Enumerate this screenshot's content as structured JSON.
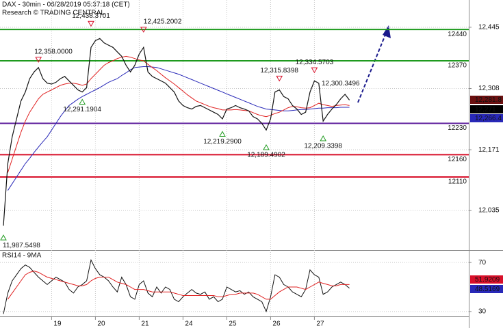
{
  "chart_data": {
    "type": "line",
    "title": "DAX - 30min - 06/28/2019 05:37:18 (CET)",
    "subtitle": "Research © TRADING CENTRAL",
    "categories": [
      null,
      null,
      null,
      null,
      null,
      null,
      null,
      null,
      null,
      null,
      null,
      "19",
      null,
      null,
      null,
      null,
      null,
      null,
      null,
      null,
      null,
      "20",
      null,
      null,
      null,
      null,
      null,
      null,
      null,
      null,
      null,
      "21",
      null,
      null,
      null,
      null,
      null,
      null,
      null,
      null,
      null,
      "24",
      null,
      null,
      null,
      null,
      null,
      null,
      null,
      null,
      null,
      "25",
      null,
      null,
      null,
      null,
      null,
      null,
      null,
      null,
      null,
      "26",
      null,
      null,
      null,
      null,
      null,
      null,
      null,
      null,
      null,
      "27",
      null,
      null,
      null,
      null,
      null,
      null,
      null,
      null
    ],
    "series": [
      {
        "name": "DAX",
        "color": "#111111",
        "values": [
          12001,
          12140,
          12200,
          12240,
          12280,
          12300,
          12330,
          12345,
          12355,
          12330,
          12320,
          12318,
          12322,
          12330,
          12335,
          12325,
          12315,
          12305,
          12300,
          12310,
          12400,
          12415,
          12420,
          12410,
          12405,
          12400,
          12390,
          12380,
          12360,
          12345,
          12360,
          12385,
          12400,
          12345,
          12335,
          12330,
          12325,
          12320,
          12310,
          12300,
          12280,
          12270,
          12265,
          12262,
          12268,
          12270,
          12265,
          12260,
          12255,
          12250,
          12240,
          12262,
          12265,
          12270,
          12265,
          12262,
          12258,
          12245,
          12240,
          12230,
          12215,
          12240,
          12300,
          12305,
          12290,
          12285,
          12270,
          12262,
          12250,
          12255,
          12300,
          12325,
          12320,
          12235,
          12250,
          12262,
          12272,
          12285,
          12295,
          12282
        ]
      },
      {
        "color": "#e02020",
        "values": [
          null,
          12120,
          12150,
          12180,
          12210,
          12235,
          12255,
          12270,
          12285,
          12295,
          12300,
          12305,
          12310,
          12315,
          12318,
          12320,
          12320,
          12318,
          12315,
          12318,
          12330,
          12340,
          12350,
          12360,
          12366,
          12370,
          12375,
          12378,
          12380,
          12378,
          12375,
          12372,
          12370,
          12362,
          12355,
          12348,
          12340,
          12332,
          12325,
          12318,
          12310,
          12302,
          12294,
          12287,
          12280,
          12276,
          12272,
          12268,
          12265,
          12263,
          12260,
          12260,
          12260,
          12261,
          12260,
          12259,
          12258,
          12254,
          12250,
          12247,
          12245,
          12248,
          12252,
          12255,
          12260,
          12265,
          12268,
          12267,
          12265,
          12264,
          12265,
          12270,
          12275,
          12272,
          12270,
          12268,
          12270,
          12271,
          12272,
          12270
        ]
      },
      {
        "color": "#2828b8",
        "values": [
          null,
          12080,
          12095,
          12110,
          12125,
          12140,
          12152,
          12165,
          12177,
          12189,
          12200,
          12215,
          12230,
          12245,
          12258,
          12270,
          12277,
          12284,
          12290,
          12295,
          12300,
          12305,
          12310,
          12316,
          12322,
          12326,
          12330,
          12337,
          12343,
          12350,
          12355,
          12356,
          12357,
          12357,
          12356,
          12355,
          12352,
          12349,
          12346,
          12343,
          12340,
          12336,
          12332,
          12328,
          12324,
          12320,
          12316,
          12312,
          12308,
          12304,
          12300,
          12296,
          12292,
          12288,
          12284,
          12280,
          12276,
          12272,
          12268,
          12265,
          12262,
          12261,
          12260,
          12259,
          12258,
          12258,
          12259,
          12260,
          12261,
          12261,
          12262,
          12263,
          12264,
          12264,
          12265,
          12265,
          12265,
          12266,
          12266,
          12266
        ]
      }
    ],
    "ylim": [
      11948,
      12506
    ],
    "yticks": [
      {
        "value": 12445,
        "label": "12,445"
      },
      {
        "value": 12308,
        "label": "12,308"
      },
      {
        "value": 12171,
        "label": "12,171"
      },
      {
        "value": 12035,
        "label": "12,035"
      }
    ],
    "grid": true,
    "levels": [
      {
        "value": 12440,
        "color": "#1e9a1e"
      },
      {
        "value": 12370,
        "color": "#1e9a1e"
      },
      {
        "value": 12230,
        "color": "#5a189a"
      },
      {
        "value": 12160,
        "color": "#d8102a"
      },
      {
        "value": 12110,
        "color": "#d8102a"
      }
    ],
    "last_labels": [
      {
        "value": 12281.8,
        "label": "12,281.8",
        "color": "#6b1010"
      },
      {
        "value": 12271,
        "label": "12,271",
        "color": "#000000"
      },
      {
        "value": 12266.4,
        "label": "12,266.4",
        "color": "#2828b8"
      }
    ],
    "annotations": [
      {
        "value": 11987.5498,
        "label": "11,987.5498",
        "kind": "trough"
      },
      {
        "value": 12358,
        "label": "12,358.0000",
        "kind": "peak"
      },
      {
        "value": 12438.3701,
        "label": "12,438.3701",
        "kind": "peak"
      },
      {
        "value": 12425.2002,
        "label": "12,425.2002",
        "kind": "peak"
      },
      {
        "value": 12291.1904,
        "label": "12,291.1904",
        "kind": "trough"
      },
      {
        "value": 12219.29,
        "label": "12,219.2900",
        "kind": "trough"
      },
      {
        "value": 12189.4902,
        "label": "12,189.4902",
        "kind": "trough"
      },
      {
        "value": 12315.8398,
        "label": "12,315.8398",
        "kind": "peak"
      },
      {
        "value": 12334.5703,
        "label": "12,334.5703",
        "kind": "peak"
      },
      {
        "value": 12209.3398,
        "label": "12,209.3398",
        "kind": "trough"
      },
      {
        "value": 12300.3496,
        "label": "12,300.3496",
        "kind": "note"
      }
    ],
    "rsi": {
      "title": "RSI14 - 9MA",
      "series": [
        {
          "color": "#111111",
          "values": [
            28,
            45,
            55,
            60,
            65,
            68,
            66,
            62,
            58,
            55,
            52,
            55,
            58,
            56,
            54,
            48,
            45,
            50,
            52,
            55,
            72,
            65,
            60,
            58,
            55,
            50,
            46,
            58,
            52,
            42,
            40,
            52,
            55,
            45,
            42,
            50,
            45,
            50,
            48,
            40,
            38,
            42,
            45,
            48,
            45,
            44,
            46,
            40,
            42,
            38,
            40,
            50,
            48,
            46,
            47,
            44,
            46,
            42,
            40,
            38,
            30,
            42,
            60,
            58,
            52,
            50,
            46,
            44,
            42,
            48,
            64,
            60,
            58,
            44,
            46,
            50,
            52,
            54,
            52,
            49
          ]
        },
        {
          "color": "#e02020",
          "values": [
            null,
            40,
            45,
            50,
            55,
            60,
            62,
            63,
            62,
            60,
            58,
            57,
            56,
            55,
            54,
            53,
            52,
            51,
            51,
            52,
            55,
            57,
            58,
            58,
            58,
            56,
            54,
            53,
            52,
            50,
            48,
            48,
            48,
            47,
            46,
            46,
            46,
            46,
            46,
            45,
            44,
            43,
            43,
            43,
            43,
            43,
            43,
            43,
            43,
            42,
            42,
            43,
            44,
            44,
            45,
            45,
            45,
            45,
            44,
            42,
            40,
            40,
            43,
            46,
            48,
            50,
            50,
            50,
            49,
            48,
            50,
            52,
            54,
            53,
            52,
            51,
            51,
            52,
            52,
            52
          ]
        }
      ],
      "ylim": [
        26,
        79
      ],
      "yticks": [
        70,
        30
      ],
      "last_labels": [
        {
          "value": 51.9209,
          "label": "51.9209",
          "color": "#d8102a"
        },
        {
          "value": 48.5169,
          "label": "48.5169",
          "color": "#2828b8"
        }
      ]
    }
  }
}
